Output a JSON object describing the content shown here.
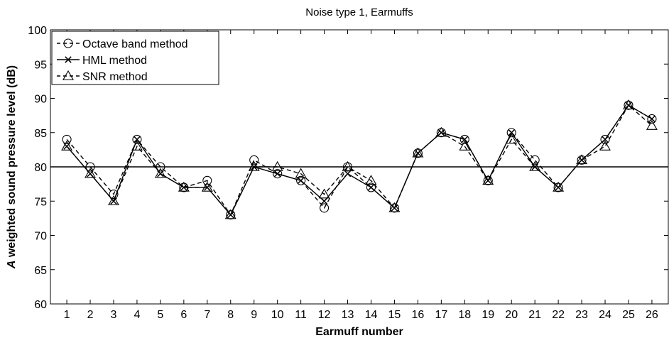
{
  "chart_data": {
    "type": "line",
    "title": "Noise type 1, Earmuffs",
    "xlabel": "Earmuff number",
    "ylabel_prefix": "A",
    "ylabel_rest": " weighted sound pressure level (dB)",
    "xlim": [
      0.3,
      26.7
    ],
    "ylim": [
      60,
      100
    ],
    "yticks": [
      60,
      65,
      70,
      75,
      80,
      85,
      90,
      95,
      100
    ],
    "x": [
      1,
      2,
      3,
      4,
      5,
      6,
      7,
      8,
      9,
      10,
      11,
      12,
      13,
      14,
      15,
      16,
      17,
      18,
      19,
      20,
      21,
      22,
      23,
      24,
      25,
      26
    ],
    "reference_line": 80,
    "legend_position": "top-left",
    "series": [
      {
        "name": "Octave band method",
        "marker": "circle",
        "dash": "6,4",
        "values": [
          84,
          80,
          76,
          84,
          80,
          77,
          78,
          73,
          81,
          79,
          78,
          74,
          80,
          77,
          74,
          82,
          85,
          84,
          78,
          85,
          81,
          77,
          81,
          84,
          89,
          87
        ]
      },
      {
        "name": "HML method",
        "marker": "x",
        "dash": "",
        "values": [
          83,
          79,
          75,
          84,
          79,
          77,
          77,
          73,
          80,
          79,
          78,
          75,
          79,
          77,
          74,
          82,
          85,
          84,
          78,
          85,
          80,
          77,
          81,
          84,
          89,
          87
        ]
      },
      {
        "name": "SNR method",
        "marker": "triangle",
        "dash": "6,4",
        "values": [
          83,
          79,
          75,
          83,
          79,
          77,
          77,
          73,
          80,
          80,
          79,
          76,
          80,
          78,
          74,
          82,
          85,
          83,
          78,
          84,
          80,
          77,
          81,
          83,
          89,
          86
        ]
      }
    ],
    "colors": {
      "line": "#000000",
      "background": "#ffffff"
    }
  }
}
